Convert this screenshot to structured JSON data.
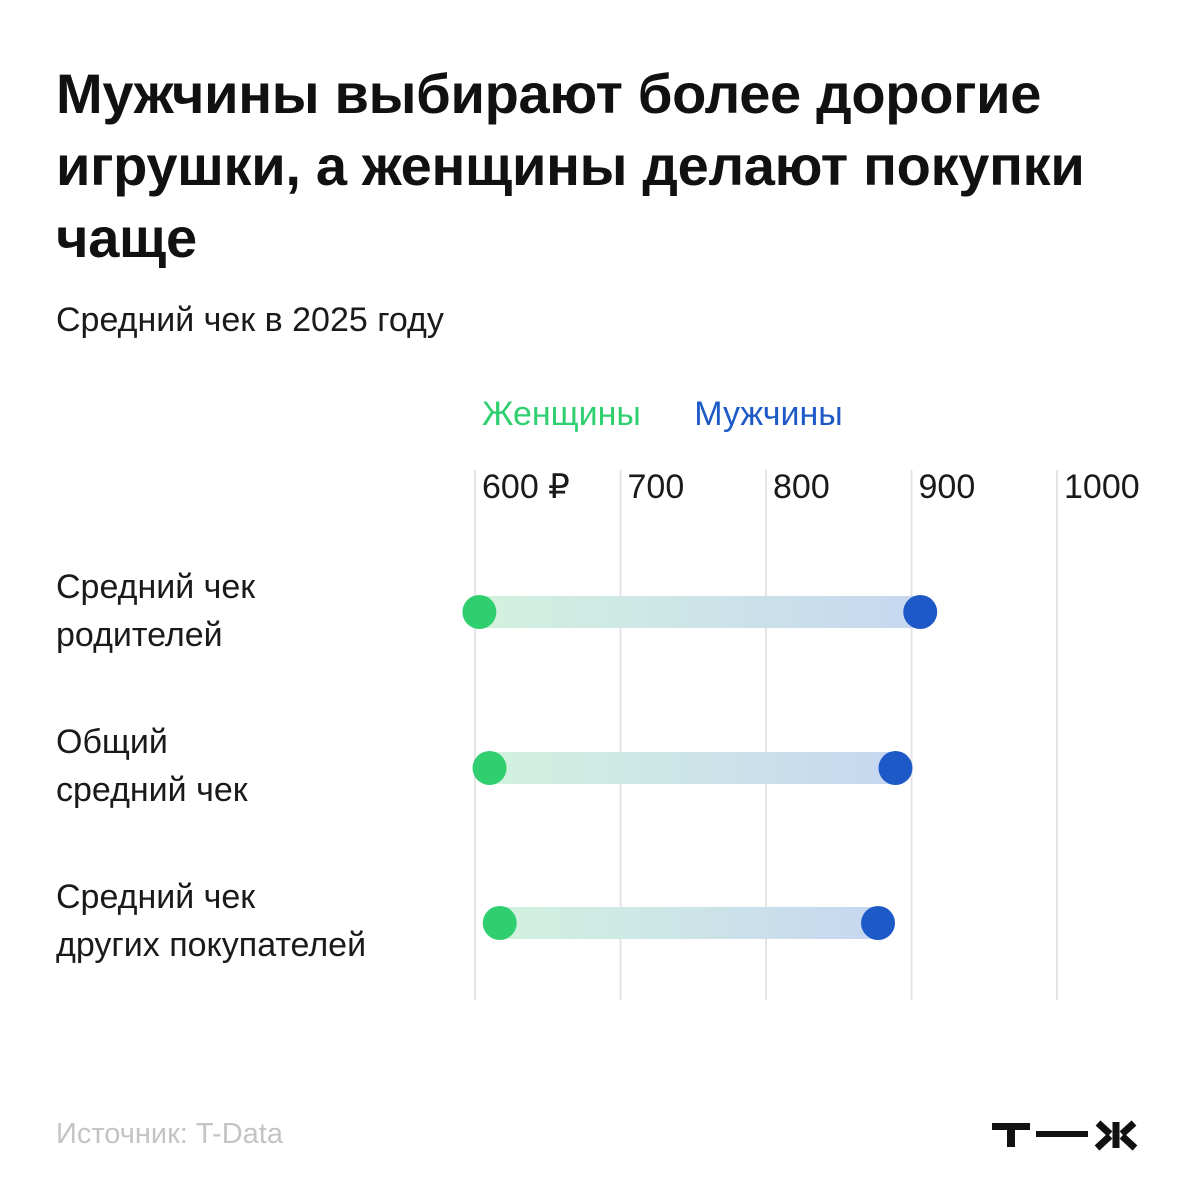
{
  "title": "Мужчины выбирают более дорогие игрушки, а женщины делают покупки чаще",
  "subtitle": "Средний чек в 2025 году",
  "legend": {
    "women": "Женщины",
    "men": "Мужчины"
  },
  "source": "Источник: T-Data",
  "logo_text": "т—ж",
  "colors": {
    "women": "#2fcf70",
    "men": "#1e5ac7",
    "grid": "#e4e4e4"
  },
  "chart_data": {
    "type": "dumbbell",
    "title": "Мужчины выбирают более дорогие игрушки, а женщины делают покупки чаще",
    "subtitle": "Средний чек в 2025 году",
    "xlim": [
      570,
      1000
    ],
    "ticks": [
      {
        "value": 600,
        "label": "600 ₽"
      },
      {
        "value": 700,
        "label": "700"
      },
      {
        "value": 800,
        "label": "800"
      },
      {
        "value": 900,
        "label": "900"
      },
      {
        "value": 1000,
        "label": "1000"
      }
    ],
    "categories": [
      "Средний чек\nродителей",
      "Общий\nсредний чек",
      "Средний чек\nдругих покупателей"
    ],
    "series": [
      {
        "name": "Женщины",
        "values": [
          603,
          610,
          617
        ]
      },
      {
        "name": "Мужчины",
        "values": [
          906,
          889,
          877
        ]
      }
    ],
    "grid": true,
    "legend_position": "top"
  }
}
